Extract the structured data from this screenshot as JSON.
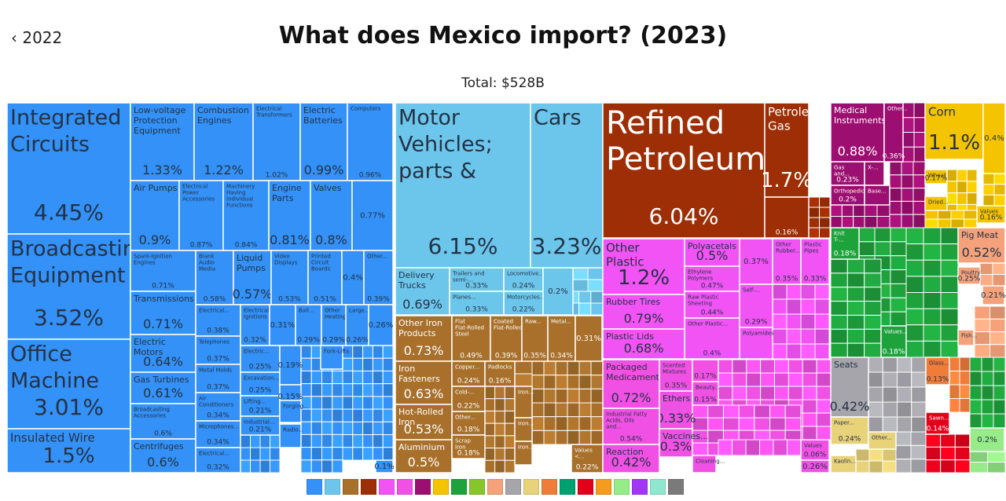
{
  "header": {
    "back_label": "2022",
    "title": "What does Mexico import? (2023)",
    "total": "Total: $528B"
  },
  "colors": {
    "machinery": "#3391f7",
    "transport": "#6cc6ec",
    "mineral": "#9e2e05",
    "metals": "#a8702b",
    "plastics": "#f153f5",
    "chemicals": "#f051e4",
    "vegetable": "#f5c400",
    "animal": "#f5a27a",
    "textiles": "#1ea23c",
    "misc": "#a5a5ab",
    "instruments": "#9c0f70",
    "paper": "#e8d27a"
  },
  "legend": [
    {
      "name": "machinery-icon",
      "color": "#3391f7"
    },
    {
      "name": "transportation-icon",
      "color": "#6cc6ec"
    },
    {
      "name": "metals-icon",
      "color": "#a8702b"
    },
    {
      "name": "mineral-products-icon",
      "color": "#9e2e05"
    },
    {
      "name": "plastics-rubbers-icon",
      "color": "#f153f5"
    },
    {
      "name": "chemical-products-icon",
      "color": "#f051e4"
    },
    {
      "name": "instruments-icon",
      "color": "#9c0f70"
    },
    {
      "name": "vegetable-products-icon",
      "color": "#f5c400"
    },
    {
      "name": "textiles-icon",
      "color": "#1ea23c"
    },
    {
      "name": "foodstuffs-icon",
      "color": "#86c62b"
    },
    {
      "name": "animal-products-icon",
      "color": "#f5a27a"
    },
    {
      "name": "miscellaneous-icon",
      "color": "#a5a5ab"
    },
    {
      "name": "paper-goods-icon",
      "color": "#e8d27a"
    },
    {
      "name": "stone-glass-icon",
      "color": "#f07c3a"
    },
    {
      "name": "transport-vehicles-icon",
      "color": "#00a170"
    },
    {
      "name": "animal-hides-icon",
      "color": "#e3001b"
    },
    {
      "name": "footwear-headwear-icon",
      "color": "#f59b1e"
    },
    {
      "name": "wood-products-icon",
      "color": "#96ec88"
    },
    {
      "name": "precious-metals-icon",
      "color": "#a237f5"
    },
    {
      "name": "arts-antiques-icon",
      "color": "#8ee7cf"
    },
    {
      "name": "weapons-icon",
      "color": "#7a7a7a"
    }
  ],
  "chart_data": {
    "type": "treemap",
    "title": "What does Mexico import? (2023)",
    "total": "$528B",
    "items": [
      {
        "label": "Integrated Circuits",
        "share": 4.45,
        "value_text": "4.45%",
        "sector": "machinery"
      },
      {
        "label": "Broadcasting Equipment",
        "share": 3.52,
        "value_text": "3.52%",
        "sector": "machinery"
      },
      {
        "label": "Office Machine Parts",
        "share": 3.01,
        "value_text": "3.01%",
        "sector": "machinery"
      },
      {
        "label": "Insulated Wire",
        "share": 1.5,
        "value_text": "1.5%",
        "sector": "machinery"
      },
      {
        "label": "Low-voltage Protection Equipment",
        "share": 1.33,
        "value_text": "1.33%",
        "sector": "machinery"
      },
      {
        "label": "Combustion Engines",
        "share": 1.22,
        "value_text": "1.22%",
        "sector": "machinery"
      },
      {
        "label": "Electrical Transformers",
        "share": 1.02,
        "value_text": "1.02%",
        "sector": "machinery"
      },
      {
        "label": "Electric Batteries",
        "share": 0.99,
        "value_text": "0.99%",
        "sector": "machinery"
      },
      {
        "label": "Computers",
        "share": 0.96,
        "value_text": "0.96%",
        "sector": "machinery"
      },
      {
        "label": "Air Pumps",
        "share": 0.9,
        "value_text": "0.9%",
        "sector": "machinery"
      },
      {
        "label": "Electrical Power Accessories",
        "share": 0.87,
        "value_text": "0.87%",
        "sector": "machinery"
      },
      {
        "label": "Machinery Having Individual Functions",
        "share": 0.84,
        "value_text": "0.84%",
        "sector": "machinery"
      },
      {
        "label": "Engine Parts",
        "share": 0.81,
        "value_text": "0.81%",
        "sector": "machinery"
      },
      {
        "label": "Valves",
        "share": 0.8,
        "value_text": "0.8%",
        "sector": "machinery"
      },
      {
        "label": "",
        "share": 0.77,
        "value_text": "0.77%",
        "sector": "machinery"
      },
      {
        "label": "Spark-Ignition Engines",
        "share": 0.71,
        "value_text": "0.71%",
        "sector": "machinery"
      },
      {
        "label": "Transmissions",
        "share": 0.71,
        "value_text": "0.71%",
        "sector": "machinery"
      },
      {
        "label": "Electric Motors",
        "share": 0.64,
        "value_text": "0.64%",
        "sector": "machinery"
      },
      {
        "label": "Gas Turbines",
        "share": 0.61,
        "value_text": "0.61%",
        "sector": "machinery"
      },
      {
        "label": "Broadcasting Accessories",
        "share": 0.6,
        "value_text": "0.6%",
        "sector": "machinery"
      },
      {
        "label": "Centrifuges",
        "share": 0.6,
        "value_text": "0.6%",
        "sector": "machinery"
      },
      {
        "label": "Blank Audio Media",
        "share": 0.58,
        "value_text": "0.58%",
        "sector": "machinery"
      },
      {
        "label": "Liquid Pumps",
        "share": 0.57,
        "value_text": "0.57%",
        "sector": "machinery"
      },
      {
        "label": "Video Displays",
        "share": 0.53,
        "value_text": "0.53%",
        "sector": "machinery"
      },
      {
        "label": "Printed Circuit Boards",
        "share": 0.51,
        "value_text": "0.51%",
        "sector": "machinery"
      },
      {
        "label": "",
        "share": 0.4,
        "value_text": "0.4%",
        "sector": "machinery"
      },
      {
        "label": "Other...",
        "share": 0.39,
        "value_text": "0.39%",
        "sector": "machinery"
      },
      {
        "label": "Electrical...",
        "share": 0.38,
        "value_text": "0.38%",
        "sector": "machinery"
      },
      {
        "label": "Telephones",
        "share": 0.37,
        "value_text": "0.37%",
        "sector": "machinery"
      },
      {
        "label": "Metal Molds",
        "share": 0.37,
        "value_text": "0.37%",
        "sector": "machinery"
      },
      {
        "label": "Air Conditioners",
        "share": 0.34,
        "value_text": "0.34%",
        "sector": "machinery"
      },
      {
        "label": "Microphones...",
        "share": 0.34,
        "value_text": "0.34%",
        "sector": "machinery"
      },
      {
        "label": "Electrical...",
        "share": 0.32,
        "value_text": "0.32%",
        "sector": "machinery"
      },
      {
        "label": "Electrical Ignitions",
        "share": 0.32,
        "value_text": "0.32%",
        "sector": "machinery"
      },
      {
        "label": "",
        "share": 0.31,
        "value_text": "0.31%",
        "sector": "machinery"
      },
      {
        "label": "Ball...",
        "share": 0.29,
        "value_text": "0.29%",
        "sector": "machinery"
      },
      {
        "label": "Other Heating...",
        "share": 0.29,
        "value_text": "0.29%",
        "sector": "machinery"
      },
      {
        "label": "Large...",
        "share": 0.26,
        "value_text": "0.26%",
        "sector": "machinery"
      },
      {
        "label": "",
        "share": 0.26,
        "value_text": "0.26%",
        "sector": "machinery"
      },
      {
        "label": "Electric...",
        "share": 0.25,
        "value_text": "0.25%",
        "sector": "machinery"
      },
      {
        "label": "Excavation...",
        "share": 0.25,
        "value_text": "0.25%",
        "sector": "machinery"
      },
      {
        "label": "Lifting...",
        "share": 0.21,
        "value_text": "0.21%",
        "sector": "machinery"
      },
      {
        "label": "Industrial...",
        "share": 0.21,
        "value_text": "0.21%",
        "sector": "machinery"
      },
      {
        "label": "",
        "share": 0.19,
        "value_text": "0.19%",
        "sector": "machinery"
      },
      {
        "label": "",
        "share": 0.15,
        "value_text": "0.15%",
        "sector": "machinery"
      },
      {
        "label": "Forging...",
        "share": null,
        "value_text": "",
        "sector": "machinery"
      },
      {
        "label": "Radio...",
        "share": null,
        "value_text": "",
        "sector": "machinery"
      },
      {
        "label": "Fork-Lifts",
        "share": null,
        "value_text": "",
        "sector": "machinery"
      },
      {
        "label": "",
        "share": 0.1,
        "value_text": "0.1%",
        "sector": "machinery"
      },
      {
        "label": "Motor Vehicles; parts & accessories",
        "share": 6.15,
        "value_text": "6.15%",
        "sector": "transport"
      },
      {
        "label": "Cars",
        "share": 3.23,
        "value_text": "3.23%",
        "sector": "transport"
      },
      {
        "label": "Delivery Trucks",
        "share": 0.69,
        "value_text": "0.69%",
        "sector": "transport"
      },
      {
        "label": "Trailers and semi-...",
        "share": 0.33,
        "value_text": "0.33%",
        "sector": "transport"
      },
      {
        "label": "Locomotive...",
        "share": 0.24,
        "value_text": "0.24%",
        "sector": "transport"
      },
      {
        "label": "Planes...",
        "share": 0.33,
        "value_text": "0.33%",
        "sector": "transport"
      },
      {
        "label": "Motorcycles...",
        "share": 0.22,
        "value_text": "0.22%",
        "sector": "transport"
      },
      {
        "label": "",
        "share": 0.2,
        "value_text": "0.2%",
        "sector": "transport"
      },
      {
        "label": "Other Iron Products",
        "share": 0.73,
        "value_text": "0.73%",
        "sector": "metals"
      },
      {
        "label": "Flat Flat-Rolled Steel",
        "share": 0.49,
        "value_text": "0.49%",
        "sector": "metals"
      },
      {
        "label": "Coated Flat-Rolled...",
        "share": 0.39,
        "value_text": "0.39%",
        "sector": "metals"
      },
      {
        "label": "Raw...",
        "share": 0.35,
        "value_text": "0.35%",
        "sector": "metals"
      },
      {
        "label": "Metal...",
        "share": 0.34,
        "value_text": "0.34%",
        "sector": "metals"
      },
      {
        "label": "",
        "share": 0.31,
        "value_text": "0.31%",
        "sector": "metals"
      },
      {
        "label": "Iron Fasteners",
        "share": 0.63,
        "value_text": "0.63%",
        "sector": "metals"
      },
      {
        "label": "Copper...",
        "share": 0.24,
        "value_text": "0.24%",
        "sector": "metals"
      },
      {
        "label": "Padlocks",
        "share": 0.16,
        "value_text": "0.16%",
        "sector": "metals"
      },
      {
        "label": "Cold-...",
        "share": 0.22,
        "value_text": "0.22%",
        "sector": "metals"
      },
      {
        "label": "Other...",
        "share": 0.18,
        "value_text": "0.18%",
        "sector": "metals"
      },
      {
        "label": "Hot-Rolled Iron",
        "share": 0.53,
        "value_text": "0.53%",
        "sector": "metals"
      },
      {
        "label": "Aluminium Plating",
        "share": 0.5,
        "value_text": "0.5%",
        "sector": "metals"
      },
      {
        "label": "Scrap Iron",
        "share": 0.18,
        "value_text": "0.18%",
        "sector": "metals"
      },
      {
        "label": "Iron...",
        "share": null,
        "value_text": "",
        "sector": "metals"
      },
      {
        "label": "Iron...",
        "share": null,
        "value_text": "",
        "sector": "metals"
      },
      {
        "label": "Iron...",
        "share": null,
        "value_text": "",
        "sector": "metals"
      },
      {
        "label": "Values <...",
        "share": 0.22,
        "value_text": "0.22%",
        "sector": "metals"
      },
      {
        "label": "Refined Petroleum",
        "share": 6.04,
        "value_text": "6.04%",
        "sector": "mineral"
      },
      {
        "label": "Petroleum Gas",
        "share": 1.7,
        "value_text": "1.7%",
        "sector": "mineral"
      },
      {
        "label": "",
        "share": 0.16,
        "value_text": "0.16%",
        "sector": "mineral"
      },
      {
        "label": "Other Plastic Products",
        "share": 1.2,
        "value_text": "1.2%",
        "sector": "plastics"
      },
      {
        "label": "Polyacetals",
        "share": 0.5,
        "value_text": "0.5%",
        "sector": "plastics"
      },
      {
        "label": "Ethylene Polymers",
        "share": 0.47,
        "value_text": "0.47%",
        "sector": "plastics"
      },
      {
        "label": "Raw Plastic Sheeting",
        "share": 0.44,
        "value_text": "0.44%",
        "sector": "plastics"
      },
      {
        "label": "Other Plastic...",
        "share": 0.4,
        "value_text": "0.4%",
        "sector": "plastics"
      },
      {
        "label": "Rubber Tires",
        "share": 0.79,
        "value_text": "0.79%",
        "sector": "plastics"
      },
      {
        "label": "Plastic Lids",
        "share": 0.68,
        "value_text": "0.68%",
        "sector": "plastics"
      },
      {
        "label": "",
        "share": 0.37,
        "value_text": "0.37%",
        "sector": "plastics"
      },
      {
        "label": "Other Rubber...",
        "share": 0.35,
        "value_text": "0.35%",
        "sector": "plastics"
      },
      {
        "label": "Plastic Pipes",
        "share": 0.33,
        "value_text": "0.33%",
        "sector": "plastics"
      },
      {
        "label": "Self-...",
        "share": 0.29,
        "value_text": "0.29%",
        "sector": "plastics"
      },
      {
        "label": "Polyamides",
        "share": null,
        "value_text": "",
        "sector": "plastics"
      },
      {
        "label": "Packaged Medicaments",
        "share": 0.72,
        "value_text": "0.72%",
        "sector": "chemicals"
      },
      {
        "label": "Scented Mixtures",
        "share": 0.35,
        "value_text": "0.35%",
        "sector": "chemicals"
      },
      {
        "label": "",
        "share": 0.17,
        "value_text": "0.17%",
        "sector": "chemicals"
      },
      {
        "label": "Beauty...",
        "share": 0.15,
        "value_text": "0.15%",
        "sector": "chemicals"
      },
      {
        "label": "Ethers",
        "share": 0.33,
        "value_text": "0.33%",
        "sector": "chemicals"
      },
      {
        "label": "Industrial Fatty Acids, Oils and...",
        "share": 0.54,
        "value_text": "0.54%",
        "sector": "chemicals"
      },
      {
        "label": "Vaccines...",
        "share": 0.3,
        "value_text": "0.3%",
        "sector": "chemicals"
      },
      {
        "label": "Reaction and...",
        "share": 0.42,
        "value_text": "0.42%",
        "sector": "chemicals"
      },
      {
        "label": "Cleaning...",
        "share": null,
        "value_text": "",
        "sector": "chemicals"
      },
      {
        "label": "Values <...",
        "share": 0.06,
        "value_text": "0.06%",
        "sector": "chemicals"
      },
      {
        "label": "",
        "share": 0.26,
        "value_text": "0.26%",
        "sector": "chemicals"
      },
      {
        "label": "Medical Instruments",
        "share": 0.88,
        "value_text": "0.88%",
        "sector": "instruments"
      },
      {
        "label": "Other...",
        "share": 0.36,
        "value_text": "0.36%",
        "sector": "instruments"
      },
      {
        "label": "Gas and...",
        "share": 0.23,
        "value_text": "0.23%",
        "sector": "instruments"
      },
      {
        "label": "X-...",
        "share": null,
        "value_text": "",
        "sector": "instruments"
      },
      {
        "label": "Orthopedic...",
        "share": 0.2,
        "value_text": "0.2%",
        "sector": "instruments"
      },
      {
        "label": "Base...",
        "share": null,
        "value_text": "",
        "sector": "instruments"
      },
      {
        "label": "Corn",
        "share": 1.1,
        "value_text": "1.1%",
        "sector": "vegetable"
      },
      {
        "label": "",
        "share": 0.4,
        "value_text": "0.4%",
        "sector": "vegetable"
      },
      {
        "label": "Wheat",
        "share": 0.17,
        "value_text": "0.17%",
        "sector": "vegetable"
      },
      {
        "label": "Dried...",
        "share": null,
        "value_text": "",
        "sector": "vegetable"
      },
      {
        "label": "Values <...",
        "share": 0.16,
        "value_text": "0.16%",
        "sector": "vegetable"
      },
      {
        "label": "Knit T-...",
        "share": 0.18,
        "value_text": "0.18%",
        "sector": "textiles"
      },
      {
        "label": "Values...",
        "share": 0.18,
        "value_text": "0.18%",
        "sector": "textiles"
      },
      {
        "label": "Pig Meat",
        "share": 0.52,
        "value_text": "0.52%",
        "sector": "animal"
      },
      {
        "label": "Poultry Meat",
        "share": 0.25,
        "value_text": "0.25%",
        "sector": "animal"
      },
      {
        "label": "",
        "share": 0.21,
        "value_text": "0.21%",
        "sector": "animal"
      },
      {
        "label": "Fish...",
        "share": null,
        "value_text": "",
        "sector": "animal"
      },
      {
        "label": "Seats",
        "share": 0.42,
        "value_text": "0.42%",
        "sector": "misc"
      },
      {
        "label": "Paper...",
        "share": 0.24,
        "value_text": "0.24%",
        "sector": "paper"
      },
      {
        "label": "Other...",
        "share": null,
        "value_text": "",
        "sector": "paper"
      },
      {
        "label": "Kaolin...",
        "share": null,
        "value_text": "",
        "sector": "paper"
      },
      {
        "label": "Glass...",
        "share": 0.13,
        "value_text": "0.13%",
        "sector": "stone"
      },
      {
        "label": "Sawn...",
        "share": 0.14,
        "value_text": "0.14%",
        "sector": "hides"
      },
      {
        "label": "",
        "share": 0.2,
        "value_text": "0.2%",
        "sector": "wood"
      }
    ]
  }
}
